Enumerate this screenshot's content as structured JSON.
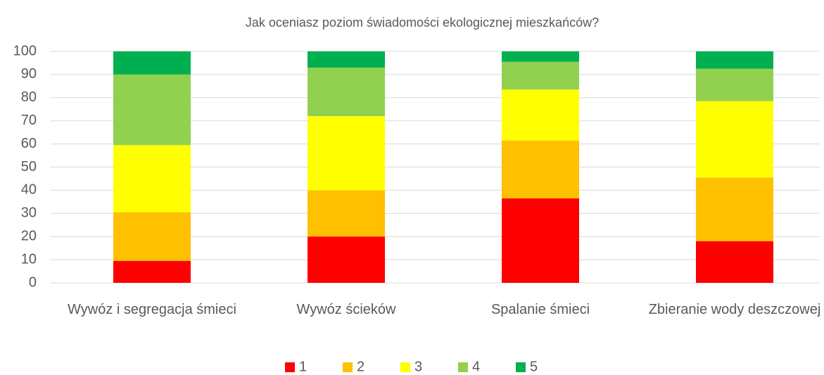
{
  "chart_data": {
    "type": "stacked_bar",
    "title": "Jak oceniasz poziom świadomości ekologicznej mieszkańców?",
    "categories": [
      "Wywóz i segregacja śmieci",
      "Wywóz ścieków",
      "Spalanie śmieci",
      "Zbieranie wody deszczowej"
    ],
    "series": [
      {
        "name": "1",
        "color": "#ff0000",
        "values": [
          9.5,
          20,
          36.5,
          18
        ]
      },
      {
        "name": "2",
        "color": "#ffc000",
        "values": [
          21,
          20,
          25,
          27.5
        ]
      },
      {
        "name": "3",
        "color": "#ffff00",
        "values": [
          29,
          32,
          22,
          33
        ]
      },
      {
        "name": "4",
        "color": "#92d050",
        "values": [
          30.5,
          21,
          12,
          14
        ]
      },
      {
        "name": "5",
        "color": "#00b050",
        "values": [
          10,
          7,
          4.5,
          7.5
        ]
      }
    ],
    "ylim": [
      0,
      100
    ],
    "yticks": [
      0,
      10,
      20,
      30,
      40,
      50,
      60,
      70,
      80,
      90,
      100
    ],
    "grid": true,
    "legend": "bottom"
  }
}
